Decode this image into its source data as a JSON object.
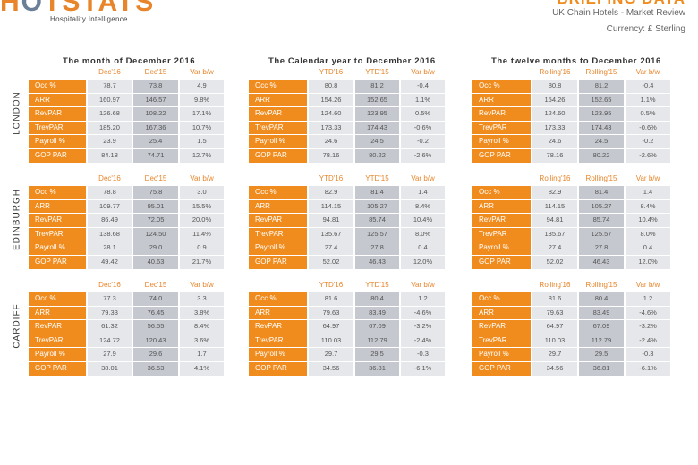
{
  "header": {
    "logo_text_pre": "H",
    "logo_text_o": "O",
    "logo_text_post": "TSTATS",
    "logo_tagline": "Hospitality Intelligence",
    "report_title": "BRIEFING DATA",
    "subtitle": "UK Chain Hotels - Market Review",
    "currency": "Currency: £ Sterling"
  },
  "colors": {
    "brand_orange": "#f08c1e",
    "cell_light": "#e6e7ea",
    "cell_dark": "#c5c8cf"
  },
  "sections": [
    {
      "title": "The month of December 2016",
      "columns": [
        "Dec'16",
        "Dec'15",
        "Var b/w"
      ]
    },
    {
      "title": "The Calendar year to December 2016",
      "columns": [
        "YTD'16",
        "YTD'15",
        "Var b/w"
      ]
    },
    {
      "title": "The twelve months to December 2016",
      "columns": [
        "Rolling'16",
        "Rolling'15",
        "Var b/w"
      ]
    }
  ],
  "row_labels": [
    "Occ %",
    "ARR",
    "RevPAR",
    "TrevPAR",
    "Payroll %",
    "GOP PAR"
  ],
  "cities": [
    {
      "name": "LONDON",
      "month": [
        [
          "78.7",
          "73.8",
          "4.9"
        ],
        [
          "160.97",
          "146.57",
          "9.8%"
        ],
        [
          "126.68",
          "108.22",
          "17.1%"
        ],
        [
          "185.20",
          "167.36",
          "10.7%"
        ],
        [
          "23.9",
          "25.4",
          "1.5"
        ],
        [
          "84.18",
          "74.71",
          "12.7%"
        ]
      ],
      "ytd": [
        [
          "80.8",
          "81.2",
          "-0.4"
        ],
        [
          "154.26",
          "152.65",
          "1.1%"
        ],
        [
          "124.60",
          "123.95",
          "0.5%"
        ],
        [
          "173.33",
          "174.43",
          "-0.6%"
        ],
        [
          "24.6",
          "24.5",
          "-0.2"
        ],
        [
          "78.16",
          "80.22",
          "-2.6%"
        ]
      ],
      "rolling": [
        [
          "80.8",
          "81.2",
          "-0.4"
        ],
        [
          "154.26",
          "152.65",
          "1.1%"
        ],
        [
          "124.60",
          "123.95",
          "0.5%"
        ],
        [
          "173.33",
          "174.43",
          "-0.6%"
        ],
        [
          "24.6",
          "24.5",
          "-0.2"
        ],
        [
          "78.16",
          "80.22",
          "-2.6%"
        ]
      ]
    },
    {
      "name": "EDINBURGH",
      "month": [
        [
          "78.8",
          "75.8",
          "3.0"
        ],
        [
          "109.77",
          "95.01",
          "15.5%"
        ],
        [
          "86.49",
          "72.05",
          "20.0%"
        ],
        [
          "138.68",
          "124.50",
          "11.4%"
        ],
        [
          "28.1",
          "29.0",
          "0.9"
        ],
        [
          "49.42",
          "40.63",
          "21.7%"
        ]
      ],
      "ytd": [
        [
          "82.9",
          "81.4",
          "1.4"
        ],
        [
          "114.15",
          "105.27",
          "8.4%"
        ],
        [
          "94.81",
          "85.74",
          "10.4%"
        ],
        [
          "135.67",
          "125.57",
          "8.0%"
        ],
        [
          "27.4",
          "27.8",
          "0.4"
        ],
        [
          "52.02",
          "46.43",
          "12.0%"
        ]
      ],
      "rolling": [
        [
          "82.9",
          "81.4",
          "1.4"
        ],
        [
          "114.15",
          "105.27",
          "8.4%"
        ],
        [
          "94.81",
          "85.74",
          "10.4%"
        ],
        [
          "135.67",
          "125.57",
          "8.0%"
        ],
        [
          "27.4",
          "27.8",
          "0.4"
        ],
        [
          "52.02",
          "46.43",
          "12.0%"
        ]
      ]
    },
    {
      "name": "CARDIFF",
      "month": [
        [
          "77.3",
          "74.0",
          "3.3"
        ],
        [
          "79.33",
          "76.45",
          "3.8%"
        ],
        [
          "61.32",
          "56.55",
          "8.4%"
        ],
        [
          "124.72",
          "120.43",
          "3.6%"
        ],
        [
          "27.9",
          "29.6",
          "1.7"
        ],
        [
          "38.01",
          "36.53",
          "4.1%"
        ]
      ],
      "ytd": [
        [
          "81.6",
          "80.4",
          "1.2"
        ],
        [
          "79.63",
          "83.49",
          "-4.6%"
        ],
        [
          "64.97",
          "67.09",
          "-3.2%"
        ],
        [
          "110.03",
          "112.79",
          "-2.4%"
        ],
        [
          "29.7",
          "29.5",
          "-0.3"
        ],
        [
          "34.56",
          "36.81",
          "-6.1%"
        ]
      ],
      "rolling": [
        [
          "81.6",
          "80.4",
          "1.2"
        ],
        [
          "79.63",
          "83.49",
          "-4.6%"
        ],
        [
          "64.97",
          "67.09",
          "-3.2%"
        ],
        [
          "110.03",
          "112.79",
          "-2.4%"
        ],
        [
          "29.7",
          "29.5",
          "-0.3"
        ],
        [
          "34.56",
          "36.81",
          "-6.1%"
        ]
      ]
    }
  ]
}
